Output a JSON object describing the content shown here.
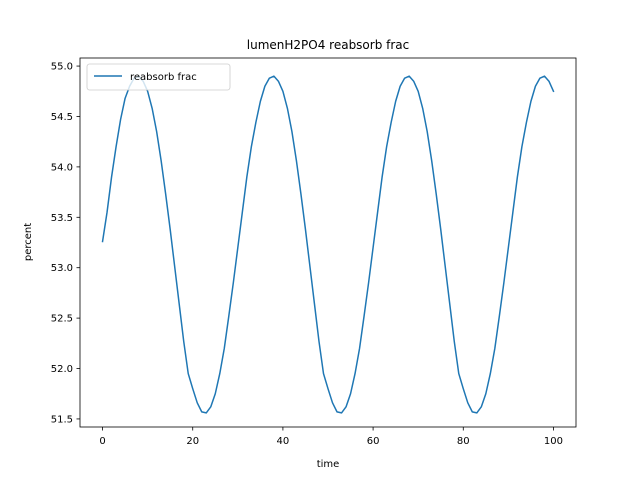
{
  "chart_data": {
    "type": "line",
    "title": "lumenH2PO4 reabsorb frac",
    "xlabel": "time",
    "ylabel": "percent",
    "xlim": [
      -5,
      105
    ],
    "ylim": [
      51.42,
      55.08
    ],
    "xticks": [
      0,
      20,
      40,
      60,
      80,
      100
    ],
    "xtick_labels": [
      "0",
      "20",
      "40",
      "60",
      "80",
      "100"
    ],
    "yticks": [
      51.5,
      52.0,
      52.5,
      53.0,
      53.5,
      54.0,
      54.5,
      55.0
    ],
    "ytick_labels": [
      "51.5",
      "52.0",
      "52.5",
      "53.0",
      "53.5",
      "54.0",
      "54.5",
      "55.0"
    ],
    "grid": false,
    "legend_position": "upper left",
    "series": [
      {
        "name": "reabsorb frac",
        "color": "#1f77b4",
        "x": [
          0,
          1,
          2,
          3,
          4,
          5,
          6,
          7,
          8,
          9,
          10,
          11,
          12,
          13,
          14,
          15,
          16,
          17,
          18,
          19,
          20,
          21,
          22,
          23,
          24,
          25,
          26,
          27,
          28,
          29,
          30,
          31,
          32,
          33,
          34,
          35,
          36,
          37,
          38,
          39,
          40,
          41,
          42,
          43,
          44,
          45,
          46,
          47,
          48,
          49,
          50,
          51,
          52,
          53,
          54,
          55,
          56,
          57,
          58,
          59,
          60,
          61,
          62,
          63,
          64,
          65,
          66,
          67,
          68,
          69,
          70,
          71,
          72,
          73,
          74,
          75,
          76,
          77,
          78,
          79,
          80,
          81,
          82,
          83,
          84,
          85,
          86,
          87,
          88,
          89,
          90,
          91,
          92,
          93,
          94,
          95,
          96,
          97,
          98,
          99,
          100
        ],
        "y": [
          53.26,
          53.55,
          53.9,
          54.2,
          54.47,
          54.68,
          54.8,
          54.88,
          54.9,
          54.85,
          54.75,
          54.58,
          54.35,
          54.06,
          53.73,
          53.38,
          53.01,
          52.64,
          52.27,
          51.95,
          51.8,
          51.66,
          51.57,
          51.56,
          51.62,
          51.75,
          51.95,
          52.2,
          52.52,
          52.85,
          53.2,
          53.55,
          53.9,
          54.2,
          54.44,
          54.65,
          54.8,
          54.88,
          54.9,
          54.85,
          54.75,
          54.58,
          54.35,
          54.06,
          53.73,
          53.38,
          53.01,
          52.64,
          52.27,
          51.95,
          51.8,
          51.66,
          51.57,
          51.56,
          51.62,
          51.75,
          51.95,
          52.2,
          52.52,
          52.85,
          53.2,
          53.55,
          53.9,
          54.2,
          54.44,
          54.65,
          54.8,
          54.88,
          54.9,
          54.85,
          54.75,
          54.58,
          54.35,
          54.06,
          53.73,
          53.38,
          53.01,
          52.64,
          52.27,
          51.95,
          51.8,
          51.66,
          51.57,
          51.56,
          51.62,
          51.75,
          51.95,
          52.2,
          52.52,
          52.85,
          53.2,
          53.55,
          53.9,
          54.2,
          54.44,
          54.65,
          54.8,
          54.88,
          54.9,
          54.85,
          54.75
        ]
      }
    ]
  }
}
